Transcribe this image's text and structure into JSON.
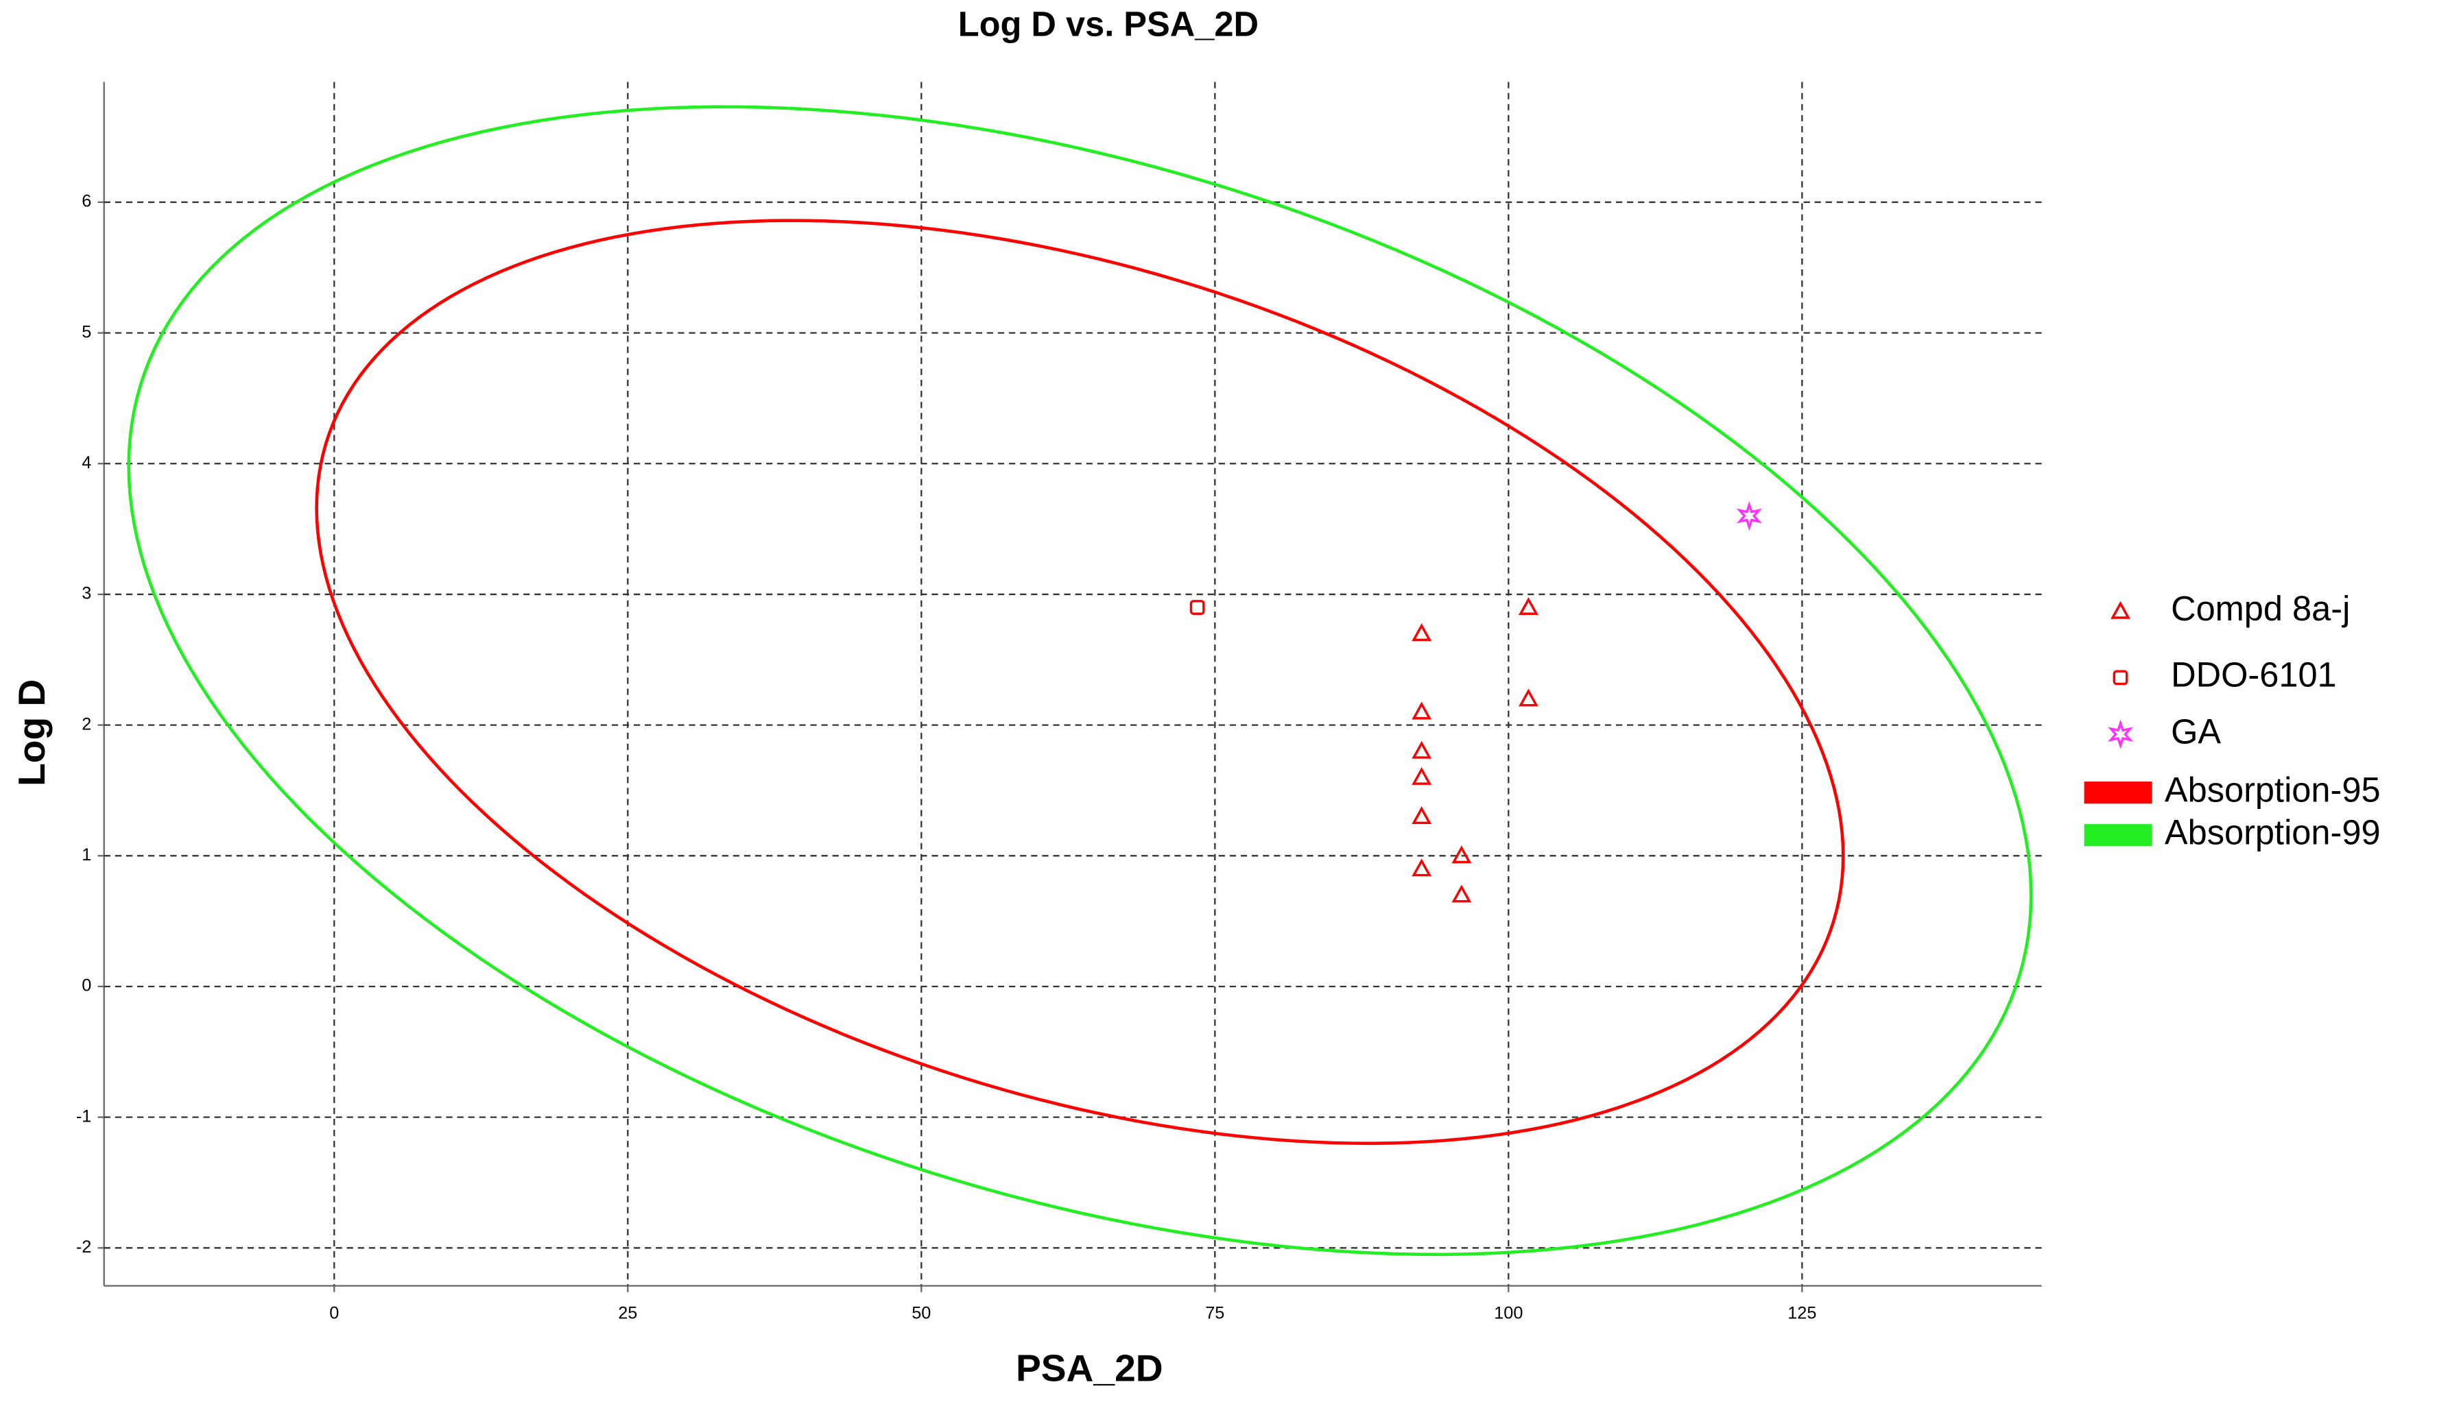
{
  "chart_data": {
    "type": "scatter",
    "title": "Log D vs. PSA_2D",
    "x_label": "PSA_2D",
    "y_label": "Log D",
    "xlim": [
      -19.6,
      145.4
    ],
    "ylim": [
      -2.29,
      6.92
    ],
    "xticks": [
      0,
      25,
      50,
      75,
      100,
      125
    ],
    "yticks": [
      -2,
      -1,
      0,
      1,
      2,
      3,
      4,
      5,
      6
    ],
    "grid": true,
    "legend": "right",
    "series": [
      {
        "name": "Compd 8a-j",
        "color": "#ff0000",
        "marker": "triangle",
        "x": [
          92.6,
          92.6,
          92.6,
          92.6,
          92.6,
          92.6,
          96,
          96,
          101.7,
          101.7
        ],
        "y": [
          2.7,
          2.1,
          1.8,
          1.6,
          1.3,
          0.9,
          1.0,
          0.7,
          2.9,
          2.2
        ]
      },
      {
        "name": "DDO-6101",
        "color": "#ff0000",
        "marker": "square",
        "x": [
          73.5
        ],
        "y": [
          2.9
        ]
      },
      {
        "name": "GA",
        "color": "#ff33ff",
        "marker": "star",
        "x": [
          120.5
        ],
        "y": [
          3.6
        ]
      }
    ],
    "ellipses": [
      {
        "name": "Absorption-95",
        "color": "#ff0000",
        "center": [
          63.5,
          2.33
        ],
        "x_radius": 65,
        "y_radius": 3.53,
        "correlation": -0.377
      },
      {
        "name": "Absorption-99",
        "color": "#22ee22",
        "center": [
          63.5,
          2.34
        ],
        "x_radius": 81,
        "y_radius": 4.39,
        "correlation": -0.374
      }
    ]
  }
}
